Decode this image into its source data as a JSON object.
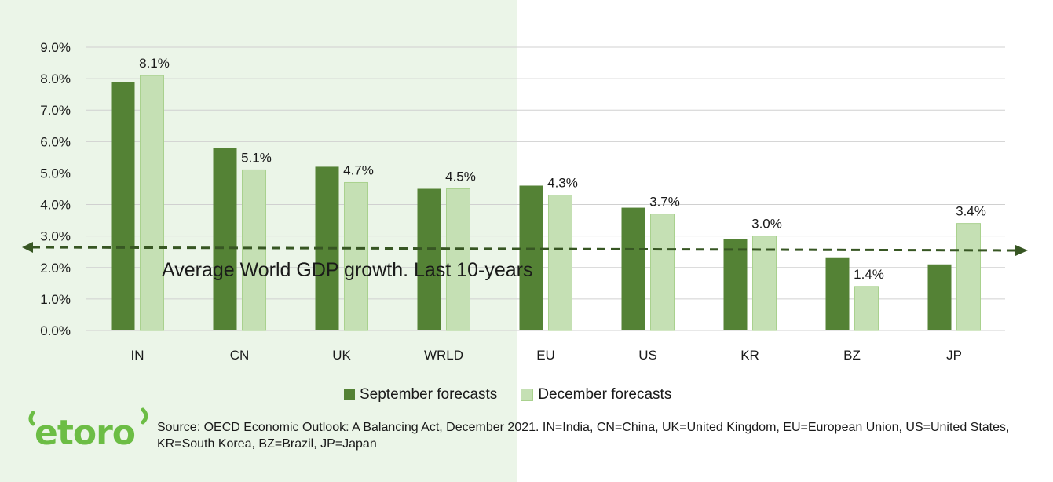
{
  "chart_data": {
    "type": "bar",
    "categories": [
      "IN",
      "CN",
      "UK",
      "WRLD",
      "EU",
      "US",
      "KR",
      "BZ",
      "JP"
    ],
    "series": [
      {
        "name": "September forecasts",
        "color": "#548235",
        "values": [
          7.9,
          5.8,
          5.2,
          4.5,
          4.6,
          3.9,
          2.9,
          2.3,
          2.1
        ]
      },
      {
        "name": "December forecasts",
        "color": "#c5e0b4",
        "values": [
          8.1,
          5.1,
          4.7,
          4.5,
          4.3,
          3.7,
          3.0,
          1.4,
          3.4
        ]
      }
    ],
    "data_labels": [
      "8.1%",
      "5.1%",
      "4.7%",
      "4.5%",
      "4.3%",
      "3.7%",
      "3.0%",
      "1.4%",
      "3.4%"
    ],
    "y_ticks": [
      "0.0%",
      "1.0%",
      "2.0%",
      "3.0%",
      "4.0%",
      "5.0%",
      "6.0%",
      "7.0%",
      "8.0%",
      "9.0%"
    ],
    "ylim": [
      0,
      9
    ],
    "grid": true,
    "legend_position": "bottom",
    "reference_line": {
      "value": 2.6,
      "label": "Average World GDP growth. Last 10-years",
      "style": "dashed",
      "color": "#375623"
    }
  },
  "logo": {
    "text": "etoro",
    "color": "#6cbd45"
  },
  "source_text": "Source: OECD Economic Outlook: A Balancing Act, December 2021. IN=India, CN=China, UK=United Kingdom, EU=European Union, US=United States, KR=South Korea, BZ=Brazil, JP=Japan"
}
